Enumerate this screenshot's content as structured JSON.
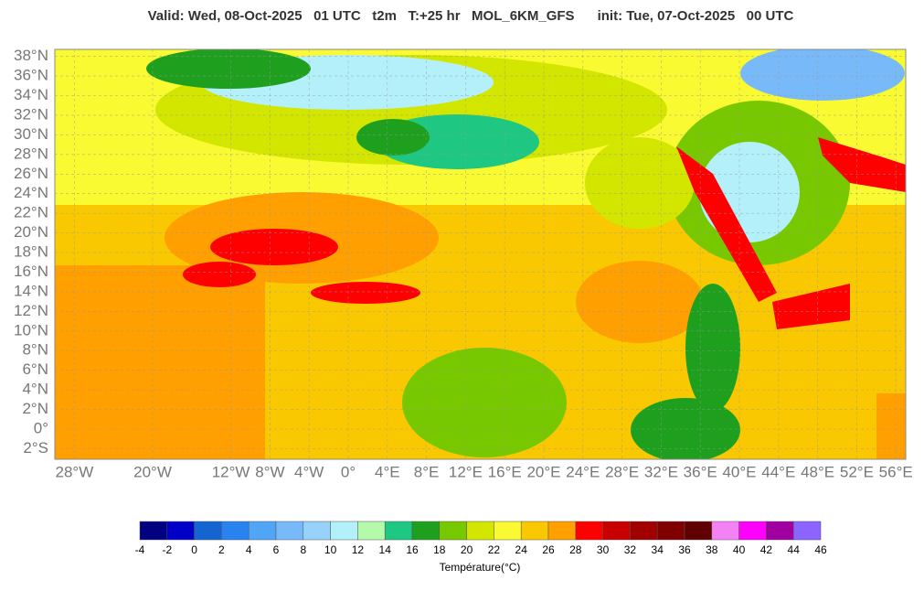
{
  "header": {
    "title": "Valid: Wed, 08-Oct-2025   01 UTC   t2m   T:+25 hr   MOL_6KM_GFS      init: Tue, 07-Oct-2025   00 UTC"
  },
  "map": {
    "lat_ticks": [
      {
        "value": 38,
        "label": "38°N"
      },
      {
        "value": 36,
        "label": "36°N"
      },
      {
        "value": 34,
        "label": "34°N"
      },
      {
        "value": 32,
        "label": "32°N"
      },
      {
        "value": 30,
        "label": "30°N"
      },
      {
        "value": 28,
        "label": "28°N"
      },
      {
        "value": 26,
        "label": "26°N"
      },
      {
        "value": 24,
        "label": "24°N"
      },
      {
        "value": 22,
        "label": "22°N"
      },
      {
        "value": 20,
        "label": "20°N"
      },
      {
        "value": 18,
        "label": "18°N"
      },
      {
        "value": 16,
        "label": "16°N"
      },
      {
        "value": 14,
        "label": "14°N"
      },
      {
        "value": 12,
        "label": "12°N"
      },
      {
        "value": 10,
        "label": "10°N"
      },
      {
        "value": 8,
        "label": "8°N"
      },
      {
        "value": 6,
        "label": "6°N"
      },
      {
        "value": 4,
        "label": "4°N"
      },
      {
        "value": 2,
        "label": "2°N"
      },
      {
        "value": 0,
        "label": "0°"
      },
      {
        "value": -2,
        "label": "2°S"
      }
    ],
    "lon_ticks": [
      {
        "value": -28,
        "label": "28°W"
      },
      {
        "value": -20,
        "label": "20°W"
      },
      {
        "value": -12,
        "label": "12°W"
      },
      {
        "value": -8,
        "label": "8°W"
      },
      {
        "value": -4,
        "label": "4°W"
      },
      {
        "value": 0,
        "label": "0°"
      },
      {
        "value": 4,
        "label": "4°E"
      },
      {
        "value": 8,
        "label": "8°E"
      },
      {
        "value": 12,
        "label": "12°E"
      },
      {
        "value": 16,
        "label": "16°E"
      },
      {
        "value": 20,
        "label": "20°E"
      },
      {
        "value": 24,
        "label": "24°E"
      },
      {
        "value": 28,
        "label": "28°E"
      },
      {
        "value": 32,
        "label": "32°E"
      },
      {
        "value": 36,
        "label": "36°E"
      },
      {
        "value": 40,
        "label": "40°E"
      },
      {
        "value": 44,
        "label": "44°E"
      },
      {
        "value": 48,
        "label": "48°E"
      },
      {
        "value": 52,
        "label": "52°E"
      },
      {
        "value": 56,
        "label": "56°E"
      }
    ]
  },
  "colorbar": {
    "ticks": [
      -4,
      -2,
      0,
      2,
      4,
      6,
      8,
      10,
      12,
      14,
      16,
      18,
      20,
      22,
      24,
      26,
      28,
      30,
      32,
      34,
      36,
      38,
      40,
      42,
      44,
      46
    ],
    "colors": [
      "#000080",
      "#0000c8",
      "#1464d2",
      "#2882f0",
      "#50a5f5",
      "#78b9fa",
      "#96d2fa",
      "#b4f0fa",
      "#b4faaa",
      "#1ec882",
      "#1ea01e",
      "#78c800",
      "#d2e600",
      "#fafa32",
      "#fac800",
      "#ffa000",
      "#ff0000",
      "#c80000",
      "#a00000",
      "#800000",
      "#600000",
      "#f582f5",
      "#ff00ff",
      "#a000a0",
      "#8c64ff"
    ],
    "label": "Température(°C)"
  }
}
